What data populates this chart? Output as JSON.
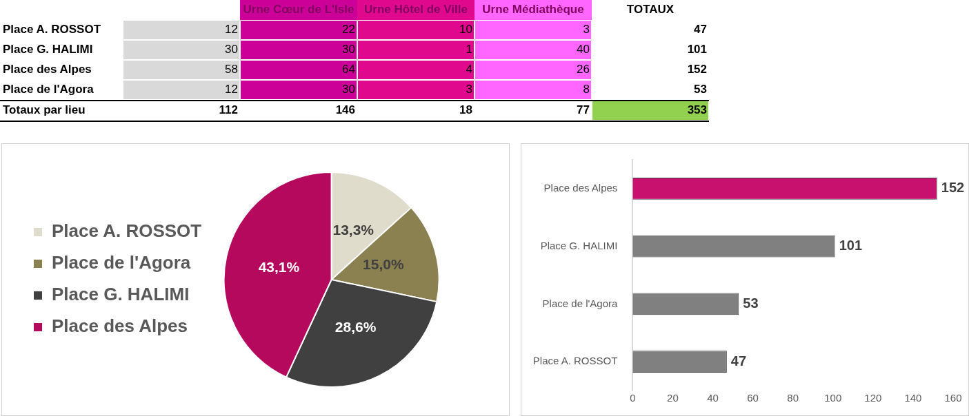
{
  "chart_data": [
    {
      "type": "heatmap",
      "categories": [
        null,
        "Urne Cœur de L'Isle",
        "Urne Hôtel de Ville",
        "Urne Médiathèque",
        "TOTAUX"
      ],
      "y_categories": [
        "Place A. ROSSOT",
        "Place G. HALIMI",
        "Place des Alpes",
        "Place de l'Agora",
        "Totaux par lieu"
      ],
      "cells": [
        [
          12,
          22,
          10,
          3,
          47
        ],
        [
          30,
          30,
          1,
          40,
          101
        ],
        [
          58,
          64,
          4,
          26,
          152
        ],
        [
          12,
          30,
          3,
          8,
          53
        ],
        [
          112,
          146,
          18,
          77,
          353
        ]
      ],
      "colors": [
        [
          "#d9d9d9",
          "#cc0099",
          "#e0088c",
          "#ff66ff",
          "#ffffff"
        ],
        [
          "#d9d9d9",
          "#cc0099",
          "#e0088c",
          "#ff66ff",
          "#ffffff"
        ],
        [
          "#d9d9d9",
          "#cc0099",
          "#e0088c",
          "#ff66ff",
          "#ffffff"
        ],
        [
          "#d9d9d9",
          "#cc0099",
          "#e0088c",
          "#ff66ff",
          "#ffffff"
        ],
        [
          "#ffffff",
          "#ffffff",
          "#ffffff",
          "#ffffff",
          "#92d050"
        ]
      ],
      "data_labels": true
    },
    {
      "type": "pie",
      "categories": [
        "Place A. ROSSOT",
        "Place de l'Agora",
        "Place G. HALIMI",
        "Place des Alpes"
      ],
      "values": [
        13.3,
        15.0,
        28.6,
        43.1
      ],
      "colors": [
        "#e0dccb",
        "#8b8150",
        "#404040",
        "#b5095d"
      ],
      "value_labels": [
        "13,3%",
        "15,0%",
        "28,6%",
        "43,1%"
      ],
      "legend": "left"
    },
    {
      "type": "bar",
      "orientation": "horizontal",
      "categories": [
        "Place des Alpes",
        "Place G. HALIMI",
        "Place de l'Agora",
        "Place A. ROSSOT"
      ],
      "values": [
        152,
        101,
        53,
        47
      ],
      "colors": [
        "#c8106e",
        "#808080",
        "#808080",
        "#808080"
      ],
      "xlim": [
        0,
        160
      ],
      "xticks": [
        0,
        20,
        40,
        60,
        80,
        100,
        120,
        140,
        160
      ],
      "data_labels": true,
      "grid": false,
      "legend": false
    }
  ]
}
